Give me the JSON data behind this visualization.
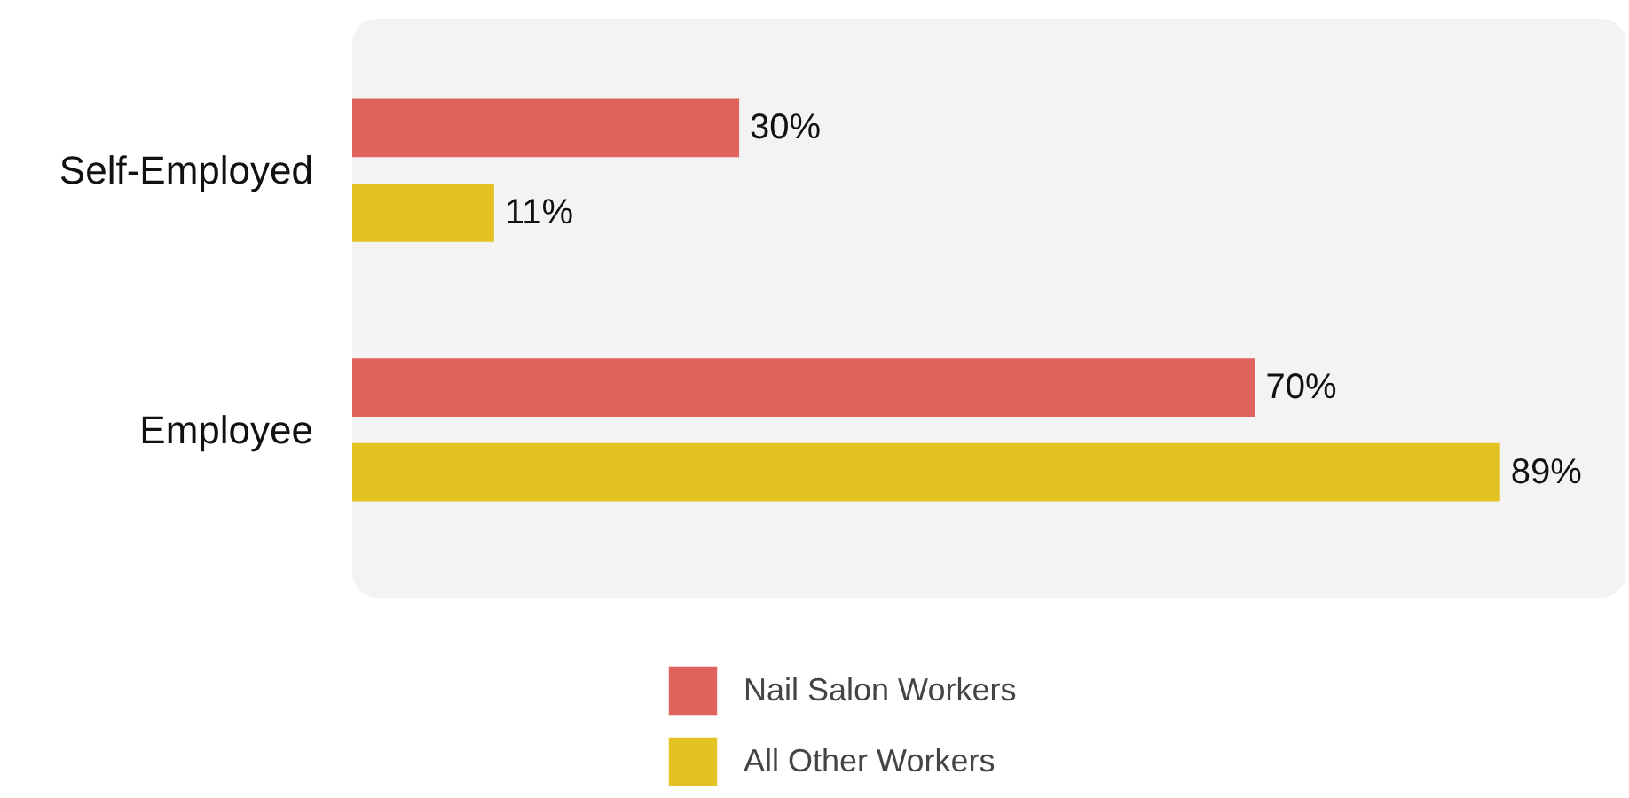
{
  "chart_data": {
    "type": "bar",
    "orientation": "horizontal",
    "categories": [
      "Self-Employed",
      "Employee"
    ],
    "series": [
      {
        "name": "Nail Salon Workers",
        "color": "#e0625c",
        "values": [
          30,
          70
        ],
        "value_labels": [
          "30%",
          "70%"
        ]
      },
      {
        "name": "All Other Workers",
        "color": "#e2c322",
        "values": [
          11,
          89
        ],
        "value_labels": [
          "11%",
          "89%"
        ]
      }
    ],
    "legend": "bottom",
    "grid": false
  }
}
